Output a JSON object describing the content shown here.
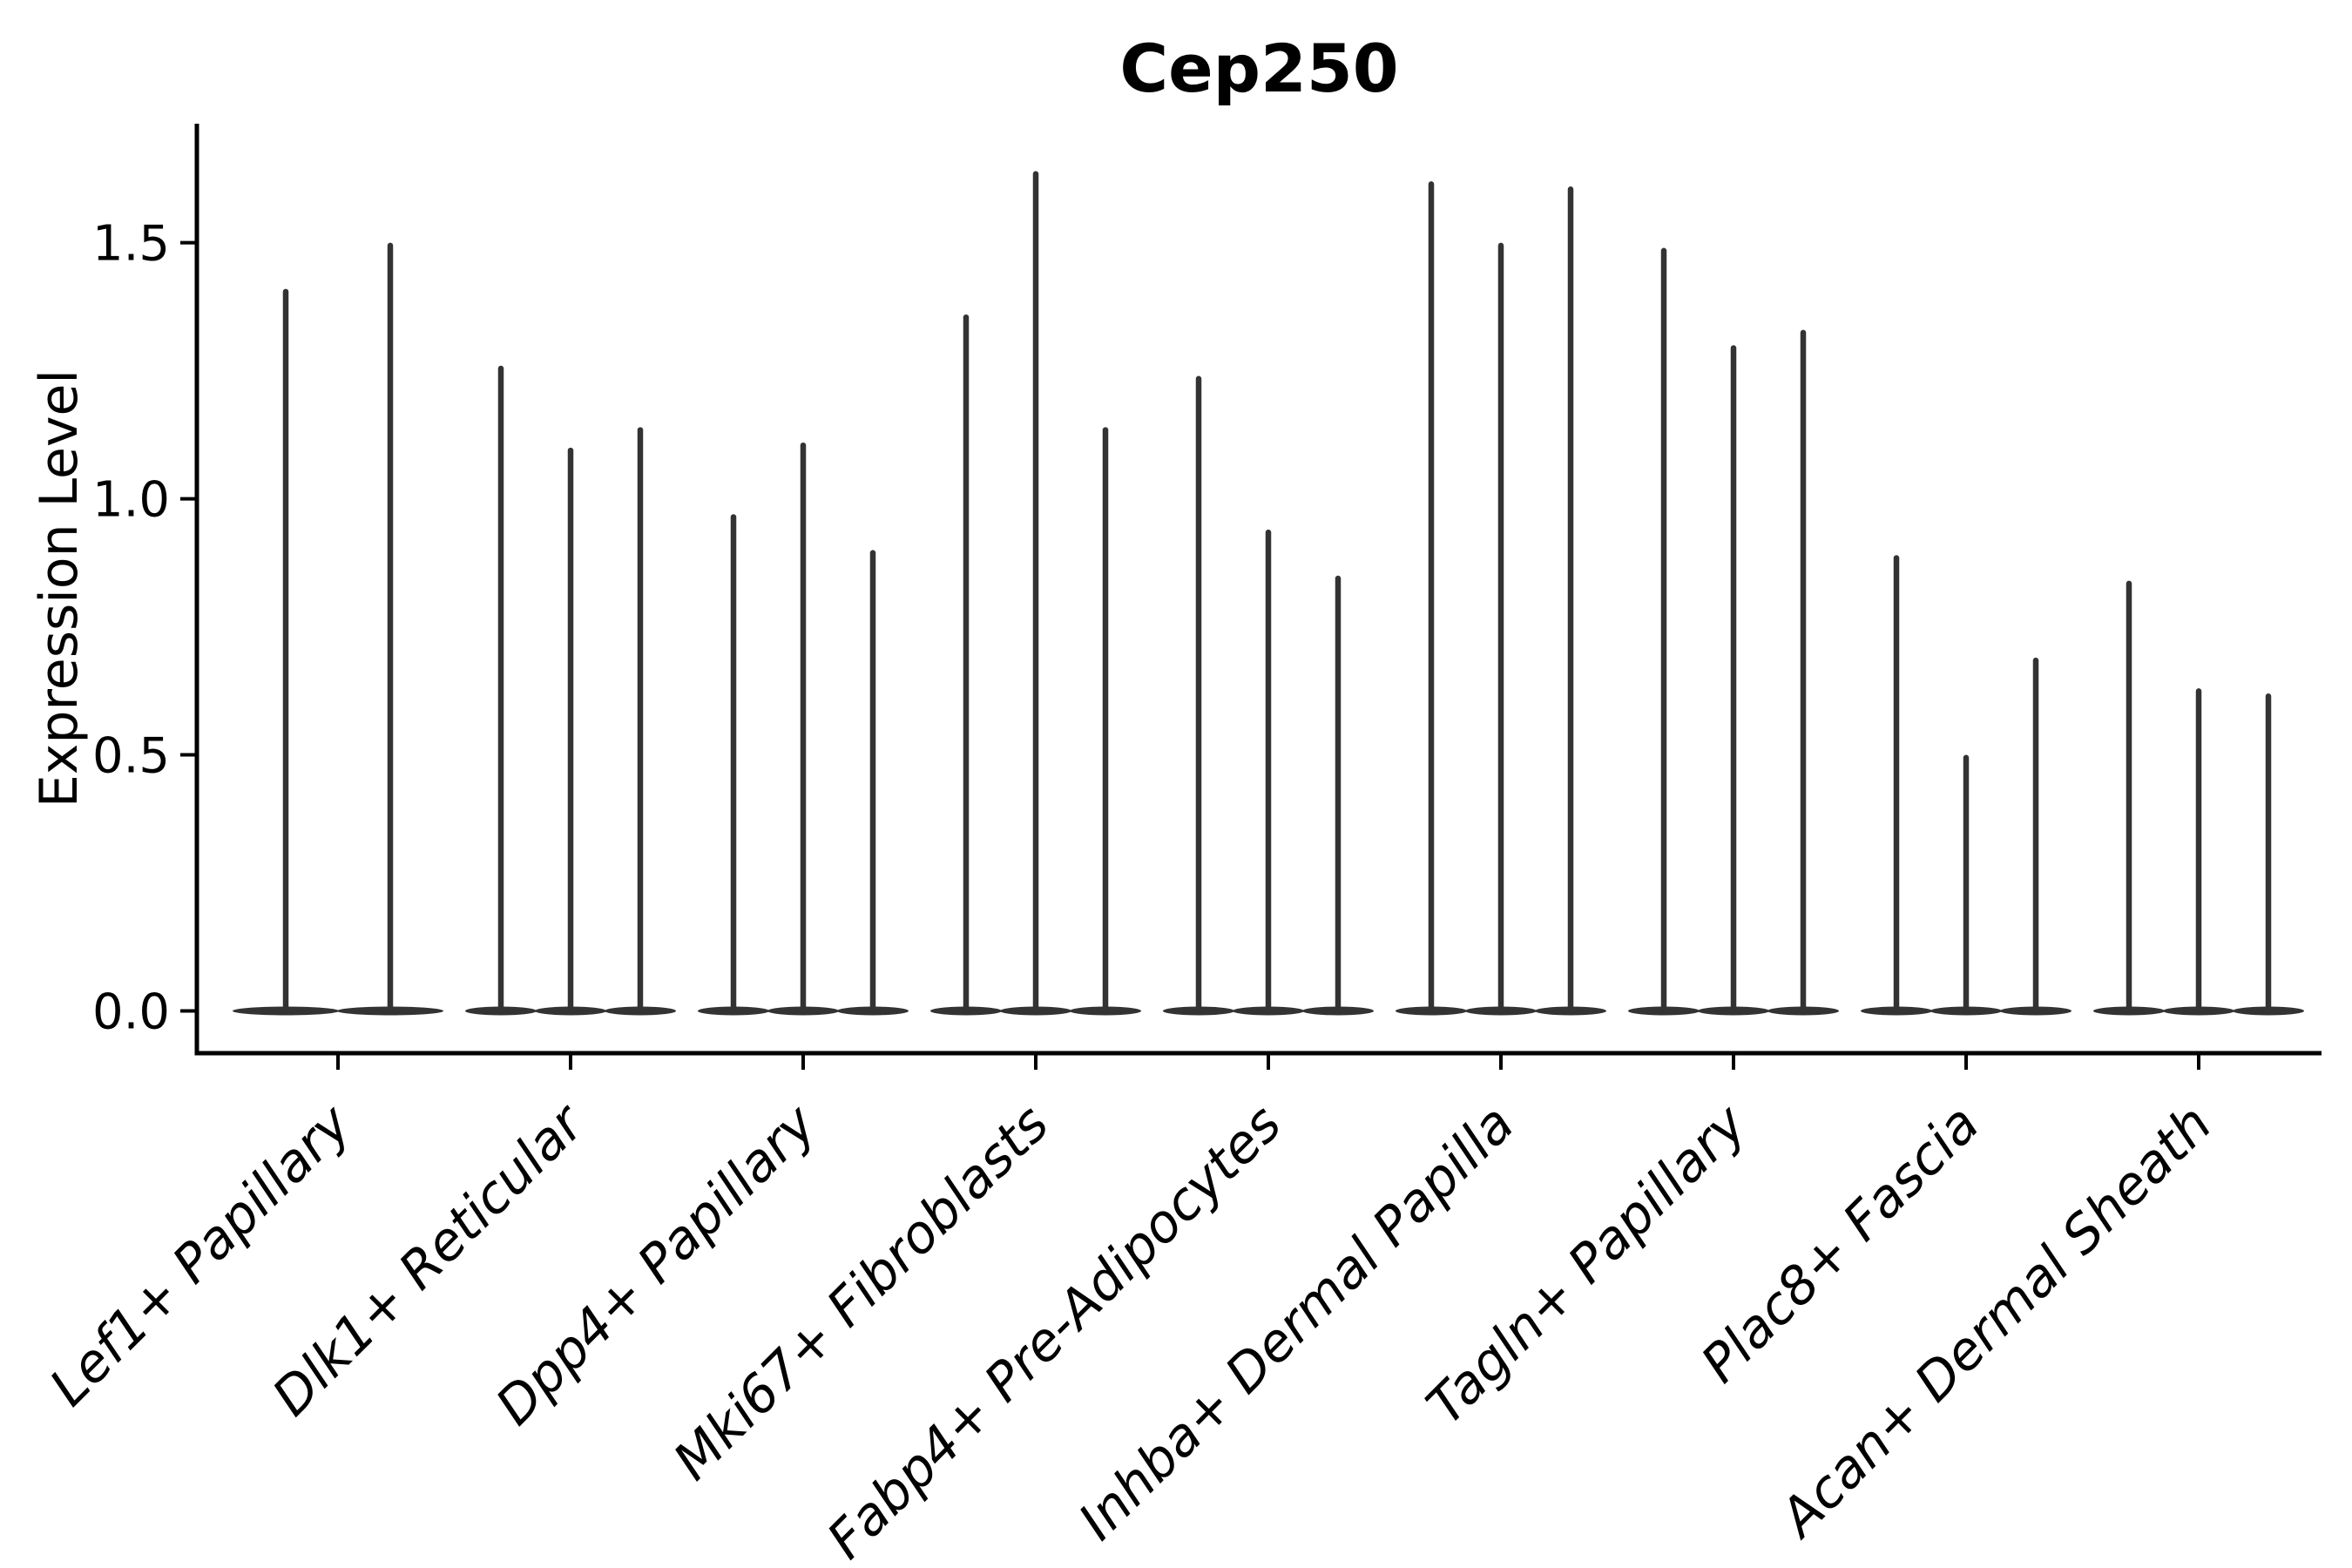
{
  "figure": {
    "background": "#ffffff",
    "violin_color": "#333333",
    "axis_color": "#000000"
  },
  "chart_data": {
    "type": "violin",
    "title": "Cep250",
    "xlabel": "",
    "ylabel": "Expression Level",
    "ylim": [
      -0.0825,
      1.7325
    ],
    "ytick_values": [
      0.0,
      0.5,
      1.0,
      1.5
    ],
    "ytick_labels": [
      "0.0",
      "0.5",
      "1.0",
      "1.5"
    ],
    "grid": false,
    "legend_position": "none",
    "x_tick_rotation": 45,
    "description": "Needle-shaped violins of expression level per cell type; each category holds multiple thin violins rising from a flat density base at 0. Values below are the peak (max) expression of each violin, left to right within each category.",
    "categories": [
      "Lef1+ Papillary",
      "Dlk1+ Reticular",
      "Dpp4+ Papillary",
      "Mki67+ Fibroblasts",
      "Fabp4+ Pre-Adipocytes",
      "Inhba+ Dermal Papilla",
      "Tagln+ Papillary",
      "Plac8+ Fascia",
      "Acan+ Dermal Sheath"
    ],
    "groups": [
      {
        "label": "Lef1+ Papillary",
        "violin_peaks": [
          1.41,
          1.5
        ]
      },
      {
        "label": "Dlk1+ Reticular",
        "violin_peaks": [
          1.26,
          1.1,
          1.14
        ]
      },
      {
        "label": "Dpp4+ Papillary",
        "violin_peaks": [
          0.97,
          1.11,
          0.9
        ]
      },
      {
        "label": "Mki67+ Fibroblasts",
        "violin_peaks": [
          1.36,
          1.64,
          1.14
        ]
      },
      {
        "label": "Fabp4+ Pre-Adipocytes",
        "violin_peaks": [
          1.24,
          0.94,
          0.85
        ]
      },
      {
        "label": "Inhba+ Dermal Papilla",
        "violin_peaks": [
          1.62,
          1.5,
          1.61
        ]
      },
      {
        "label": "Tagln+ Papillary",
        "violin_peaks": [
          1.49,
          1.3,
          1.33
        ]
      },
      {
        "label": "Plac8+ Fascia",
        "violin_peaks": [
          0.89,
          0.5,
          0.69
        ]
      },
      {
        "label": "Acan+ Dermal Sheath",
        "violin_peaks": [
          0.84,
          0.63,
          0.62
        ]
      }
    ]
  }
}
